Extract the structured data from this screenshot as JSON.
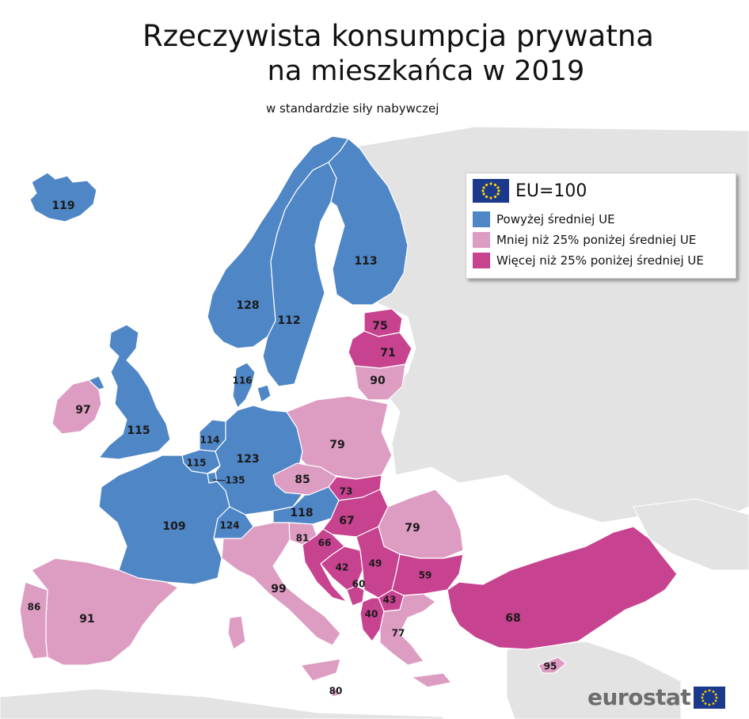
{
  "title": {
    "line1": "Rzeczywista konsumpcja prywatna",
    "line2": "na mieszkańca w 2019"
  },
  "subtitle": "w standardzie siły nabywczej",
  "legend": {
    "eu_label": "EU=100",
    "items": [
      {
        "label": "Powyżej średniej UE",
        "color": "#4f86c6"
      },
      {
        "label": "Mniej niż 25% poniżej średniej UE",
        "color": "#dd9dc3"
      },
      {
        "label": "Więcej niż 25% poniżej średniej UE",
        "color": "#c7428f"
      }
    ]
  },
  "colors": {
    "above": "#4f86c6",
    "below_less_25": "#dd9dc3",
    "below_more_25": "#c7428f",
    "non_member": "#e3e3e3",
    "sea": "#ffffff",
    "border": "#ffffff"
  },
  "regions": [
    {
      "id": "iceland",
      "value": "119",
      "category": "above"
    },
    {
      "id": "norway",
      "value": "128",
      "category": "above"
    },
    {
      "id": "sweden",
      "value": "112",
      "category": "above"
    },
    {
      "id": "finland",
      "value": "113",
      "category": "above"
    },
    {
      "id": "estonia",
      "value": "75",
      "category": "below_more_25"
    },
    {
      "id": "latvia",
      "value": "71",
      "category": "below_more_25"
    },
    {
      "id": "lithuania",
      "value": "90",
      "category": "below_less_25"
    },
    {
      "id": "denmark",
      "value": "116",
      "category": "above"
    },
    {
      "id": "ireland",
      "value": "97",
      "category": "below_less_25"
    },
    {
      "id": "uk",
      "value": "115",
      "category": "above"
    },
    {
      "id": "netherlands",
      "value": "114",
      "category": "above"
    },
    {
      "id": "belgium",
      "value": "115",
      "category": "above"
    },
    {
      "id": "luxembourg",
      "value": "135",
      "category": "above"
    },
    {
      "id": "germany",
      "value": "123",
      "category": "above"
    },
    {
      "id": "poland",
      "value": "79",
      "category": "below_less_25"
    },
    {
      "id": "czechia",
      "value": "85",
      "category": "below_less_25"
    },
    {
      "id": "slovakia",
      "value": "73",
      "category": "below_more_25"
    },
    {
      "id": "austria",
      "value": "118",
      "category": "above"
    },
    {
      "id": "hungary",
      "value": "67",
      "category": "below_more_25"
    },
    {
      "id": "romania",
      "value": "79",
      "category": "below_less_25"
    },
    {
      "id": "france",
      "value": "109",
      "category": "above"
    },
    {
      "id": "switzerland",
      "value": "124",
      "category": "above"
    },
    {
      "id": "slovenia",
      "value": "81",
      "category": "below_less_25"
    },
    {
      "id": "croatia",
      "value": "66",
      "category": "below_more_25"
    },
    {
      "id": "bosnia",
      "value": "42",
      "category": "below_more_25"
    },
    {
      "id": "serbia",
      "value": "49",
      "category": "below_more_25"
    },
    {
      "id": "montenegro",
      "value": "60",
      "category": "below_more_25"
    },
    {
      "id": "north_macedonia",
      "value": "43",
      "category": "below_more_25"
    },
    {
      "id": "albania",
      "value": "40",
      "category": "below_more_25"
    },
    {
      "id": "bulgaria",
      "value": "59",
      "category": "below_more_25"
    },
    {
      "id": "greece",
      "value": "77",
      "category": "below_less_25"
    },
    {
      "id": "turkey",
      "value": "68",
      "category": "below_more_25"
    },
    {
      "id": "cyprus",
      "value": "95",
      "category": "below_less_25"
    },
    {
      "id": "italy",
      "value": "99",
      "category": "below_less_25"
    },
    {
      "id": "malta",
      "value": "80",
      "category": "below_less_25"
    },
    {
      "id": "spain",
      "value": "91",
      "category": "below_less_25"
    },
    {
      "id": "portugal",
      "value": "86",
      "category": "below_less_25"
    }
  ],
  "logo": {
    "text": "eurostat"
  }
}
